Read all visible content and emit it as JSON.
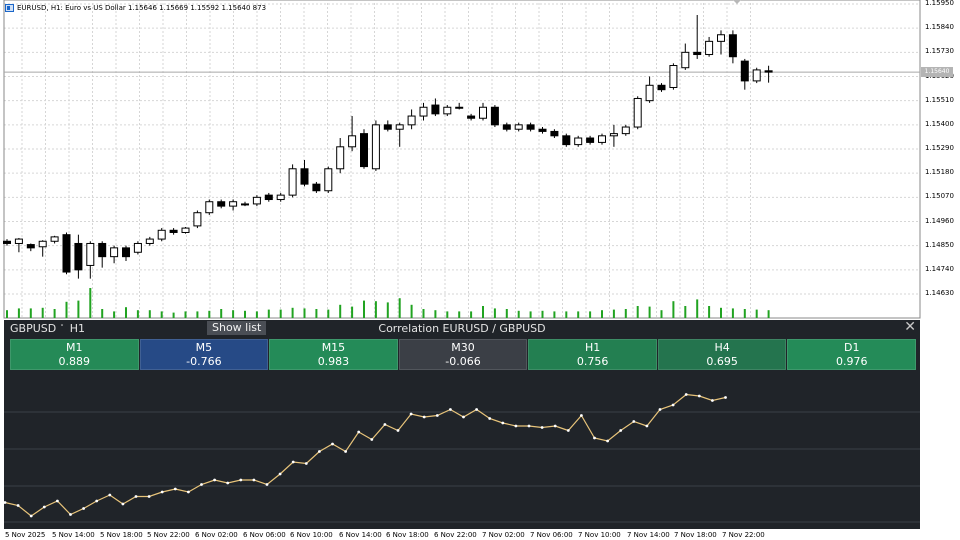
{
  "main_chart": {
    "header": "EURUSD, H1:  Euro vs US Dollar  1.15646 1.15669 1.15592 1.15640  873",
    "current_price": "1.15640",
    "price_ticks": [
      "1.15950",
      "1.15840",
      "1.15730",
      "1.15620",
      "1.15510",
      "1.15400",
      "1.15290",
      "1.15180",
      "1.15070",
      "1.14960",
      "1.14850",
      "1.14740",
      "1.14630"
    ],
    "candles": [
      {
        "o": 1.1487,
        "c": 1.1486,
        "h": 1.1488,
        "l": 1.1485
      },
      {
        "o": 1.1486,
        "c": 1.1488,
        "h": 1.14885,
        "l": 1.1482
      },
      {
        "o": 1.14855,
        "c": 1.1484,
        "h": 1.1486,
        "l": 1.14825
      },
      {
        "o": 1.14845,
        "c": 1.1487,
        "h": 1.14875,
        "l": 1.148
      },
      {
        "o": 1.1487,
        "c": 1.1489,
        "h": 1.14895,
        "l": 1.1486
      },
      {
        "o": 1.149,
        "c": 1.1473,
        "h": 1.1491,
        "l": 1.1472
      },
      {
        "o": 1.1486,
        "c": 1.1474,
        "h": 1.149,
        "l": 1.147
      },
      {
        "o": 1.1476,
        "c": 1.1486,
        "h": 1.1487,
        "l": 1.147
      },
      {
        "o": 1.1486,
        "c": 1.148,
        "h": 1.1487,
        "l": 1.1475
      },
      {
        "o": 1.148,
        "c": 1.1484,
        "h": 1.1485,
        "l": 1.1477
      },
      {
        "o": 1.1484,
        "c": 1.148,
        "h": 1.1485,
        "l": 1.1478
      },
      {
        "o": 1.1482,
        "c": 1.1486,
        "h": 1.1487,
        "l": 1.1481
      },
      {
        "o": 1.1486,
        "c": 1.1488,
        "h": 1.1489,
        "l": 1.1485
      },
      {
        "o": 1.1488,
        "c": 1.1492,
        "h": 1.1493,
        "l": 1.1487
      },
      {
        "o": 1.1492,
        "c": 1.1491,
        "h": 1.1493,
        "l": 1.149
      },
      {
        "o": 1.1491,
        "c": 1.1493,
        "h": 1.14935,
        "l": 1.14905
      },
      {
        "o": 1.1494,
        "c": 1.15,
        "h": 1.1501,
        "l": 1.1493
      },
      {
        "o": 1.15,
        "c": 1.1505,
        "h": 1.1506,
        "l": 1.1499
      },
      {
        "o": 1.1505,
        "c": 1.1503,
        "h": 1.1506,
        "l": 1.1502
      },
      {
        "o": 1.1503,
        "c": 1.1505,
        "h": 1.1506,
        "l": 1.1501
      },
      {
        "o": 1.1504,
        "c": 1.1504,
        "h": 1.1505,
        "l": 1.1503
      },
      {
        "o": 1.1504,
        "c": 1.1507,
        "h": 1.1508,
        "l": 1.1503
      },
      {
        "o": 1.1508,
        "c": 1.1506,
        "h": 1.1509,
        "l": 1.1505
      },
      {
        "o": 1.1506,
        "c": 1.1508,
        "h": 1.1509,
        "l": 1.1505
      },
      {
        "o": 1.1508,
        "c": 1.152,
        "h": 1.1522,
        "l": 1.1507
      },
      {
        "o": 1.152,
        "c": 1.1513,
        "h": 1.1524,
        "l": 1.1512
      },
      {
        "o": 1.1513,
        "c": 1.151,
        "h": 1.1514,
        "l": 1.1509
      },
      {
        "o": 1.151,
        "c": 1.152,
        "h": 1.1521,
        "l": 1.1509
      },
      {
        "o": 1.152,
        "c": 1.153,
        "h": 1.1534,
        "l": 1.1518
      },
      {
        "o": 1.153,
        "c": 1.1535,
        "h": 1.1544,
        "l": 1.1528
      },
      {
        "o": 1.1536,
        "c": 1.1521,
        "h": 1.1538,
        "l": 1.152
      },
      {
        "o": 1.152,
        "c": 1.154,
        "h": 1.1542,
        "l": 1.1519
      },
      {
        "o": 1.154,
        "c": 1.1538,
        "h": 1.1542,
        "l": 1.1537
      },
      {
        "o": 1.1538,
        "c": 1.154,
        "h": 1.1541,
        "l": 1.153
      },
      {
        "o": 1.154,
        "c": 1.1544,
        "h": 1.1547,
        "l": 1.1538
      },
      {
        "o": 1.1544,
        "c": 1.1548,
        "h": 1.155,
        "l": 1.1542
      },
      {
        "o": 1.1549,
        "c": 1.1545,
        "h": 1.1552,
        "l": 1.1544
      },
      {
        "o": 1.1545,
        "c": 1.1548,
        "h": 1.1549,
        "l": 1.1544
      },
      {
        "o": 1.1548,
        "c": 1.1548,
        "h": 1.155,
        "l": 1.1547
      },
      {
        "o": 1.1544,
        "c": 1.1543,
        "h": 1.1545,
        "l": 1.1542
      },
      {
        "o": 1.1543,
        "c": 1.1548,
        "h": 1.155,
        "l": 1.1542
      },
      {
        "o": 1.1548,
        "c": 1.154,
        "h": 1.1549,
        "l": 1.1539
      },
      {
        "o": 1.154,
        "c": 1.1538,
        "h": 1.1541,
        "l": 1.1537
      },
      {
        "o": 1.1538,
        "c": 1.154,
        "h": 1.1541,
        "l": 1.1537
      },
      {
        "o": 1.154,
        "c": 1.1538,
        "h": 1.1541,
        "l": 1.1537
      },
      {
        "o": 1.1538,
        "c": 1.1537,
        "h": 1.1539,
        "l": 1.1536
      },
      {
        "o": 1.1537,
        "c": 1.1535,
        "h": 1.1538,
        "l": 1.1534
      },
      {
        "o": 1.1535,
        "c": 1.1531,
        "h": 1.1536,
        "l": 1.153
      },
      {
        "o": 1.1531,
        "c": 1.1534,
        "h": 1.1535,
        "l": 1.153
      },
      {
        "o": 1.1534,
        "c": 1.1532,
        "h": 1.1535,
        "l": 1.1531
      },
      {
        "o": 1.1532,
        "c": 1.1535,
        "h": 1.1536,
        "l": 1.1531
      },
      {
        "o": 1.1535,
        "c": 1.1536,
        "h": 1.154,
        "l": 1.153
      },
      {
        "o": 1.1536,
        "c": 1.1539,
        "h": 1.154,
        "l": 1.1535
      },
      {
        "o": 1.1539,
        "c": 1.1552,
        "h": 1.1553,
        "l": 1.1538
      },
      {
        "o": 1.1551,
        "c": 1.1558,
        "h": 1.1562,
        "l": 1.155
      },
      {
        "o": 1.1558,
        "c": 1.1556,
        "h": 1.1559,
        "l": 1.1555
      },
      {
        "o": 1.1557,
        "c": 1.1567,
        "h": 1.1568,
        "l": 1.1556
      },
      {
        "o": 1.1566,
        "c": 1.1573,
        "h": 1.1577,
        "l": 1.1565
      },
      {
        "o": 1.1573,
        "c": 1.1572,
        "h": 1.159,
        "l": 1.157
      },
      {
        "o": 1.1572,
        "c": 1.1578,
        "h": 1.158,
        "l": 1.1571
      },
      {
        "o": 1.1578,
        "c": 1.1581,
        "h": 1.1583,
        "l": 1.1572
      },
      {
        "o": 1.1581,
        "c": 1.1571,
        "h": 1.1583,
        "l": 1.1568
      },
      {
        "o": 1.1569,
        "c": 1.156,
        "h": 1.157,
        "l": 1.1556
      },
      {
        "o": 1.156,
        "c": 1.1565,
        "h": 1.1566,
        "l": 1.1559
      },
      {
        "o": 1.15646,
        "c": 1.1564,
        "h": 1.15669,
        "l": 1.15592
      }
    ],
    "volumes": [
      0.26,
      0.32,
      0.32,
      0.34,
      0.3,
      0.54,
      0.58,
      1.0,
      0.3,
      0.22,
      0.36,
      0.26,
      0.26,
      0.22,
      0.18,
      0.22,
      0.22,
      0.24,
      0.3,
      0.26,
      0.24,
      0.22,
      0.28,
      0.28,
      0.34,
      0.32,
      0.3,
      0.28,
      0.44,
      0.38,
      0.58,
      0.56,
      0.52,
      0.66,
      0.44,
      0.3,
      0.26,
      0.22,
      0.22,
      0.22,
      0.4,
      0.32,
      0.3,
      0.24,
      0.22,
      0.24,
      0.22,
      0.22,
      0.22,
      0.22,
      0.26,
      0.28,
      0.3,
      0.4,
      0.38,
      0.26,
      0.56,
      0.4,
      0.62,
      0.4,
      0.34,
      0.32,
      0.3,
      0.28,
      0.26
    ],
    "time_labels": [
      "5 Nov 2025",
      "5 Nov 14:00",
      "5 Nov 18:00",
      "5 Nov 22:00",
      "6 Nov 02:00",
      "6 Nov 06:00",
      "6 Nov 10:00",
      "6 Nov 14:00",
      "6 Nov 18:00",
      "6 Nov 22:00",
      "7 Nov 02:00",
      "7 Nov 06:00",
      "7 Nov 10:00",
      "7 Nov 14:00",
      "7 Nov 18:00",
      "7 Nov 22:00"
    ]
  },
  "panel": {
    "symbol": "GBPUSD",
    "caret": "˅",
    "timeframe": "H1",
    "show_list_label": "Show list",
    "title": "Correlation EURUSD / GBPUSD",
    "close_glyph": "✕",
    "tiles": [
      {
        "tf": "M1",
        "value": "0.889",
        "color": "#258a57"
      },
      {
        "tf": "M5",
        "value": "-0.766",
        "color": "#264a86"
      },
      {
        "tf": "M15",
        "value": "0.983",
        "color": "#248b58"
      },
      {
        "tf": "M30",
        "value": "-0.066",
        "color": "#3b3f46"
      },
      {
        "tf": "H1",
        "value": "0.756",
        "color": "#237f51"
      },
      {
        "tf": "H4",
        "value": "0.695",
        "color": "#24744e"
      },
      {
        "tf": "D1",
        "value": "0.976",
        "color": "#248b58"
      }
    ],
    "line_color": "#e8c47a",
    "gbp_series": [
      0.13,
      0.11,
      0.04,
      0.1,
      0.14,
      0.05,
      0.09,
      0.14,
      0.18,
      0.12,
      0.17,
      0.17,
      0.2,
      0.22,
      0.2,
      0.25,
      0.28,
      0.26,
      0.28,
      0.28,
      0.25,
      0.32,
      0.4,
      0.39,
      0.47,
      0.52,
      0.47,
      0.6,
      0.55,
      0.65,
      0.61,
      0.72,
      0.7,
      0.71,
      0.75,
      0.7,
      0.75,
      0.69,
      0.66,
      0.64,
      0.64,
      0.63,
      0.64,
      0.61,
      0.71,
      0.56,
      0.54,
      0.61,
      0.67,
      0.64,
      0.75,
      0.78,
      0.85,
      0.84,
      0.81,
      0.83
    ]
  },
  "chart_data": {
    "type": "line",
    "title": "Correlation EURUSD / GBPUSD",
    "xlabel": "",
    "ylabel": "",
    "x": [
      "5 Nov 2025",
      "5 Nov 14:00",
      "5 Nov 18:00",
      "5 Nov 22:00",
      "6 Nov 02:00",
      "6 Nov 06:00",
      "6 Nov 10:00",
      "6 Nov 14:00",
      "6 Nov 18:00",
      "6 Nov 22:00",
      "7 Nov 02:00",
      "7 Nov 06:00",
      "7 Nov 10:00",
      "7 Nov 14:00",
      "7 Nov 18:00",
      "7 Nov 22:00"
    ],
    "grid": true
  }
}
